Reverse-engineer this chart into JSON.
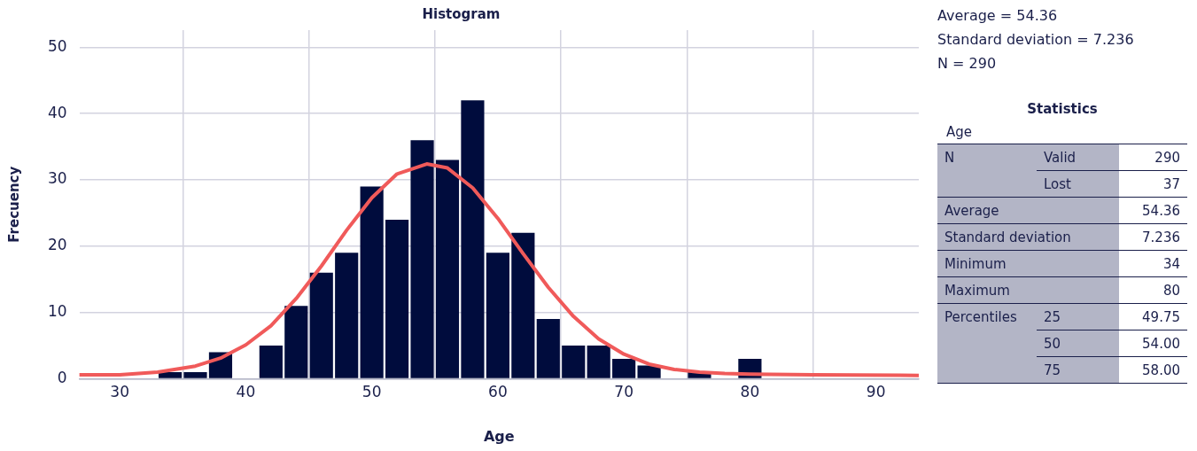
{
  "chart_data": [
    {
      "type": "histogram",
      "title": "Histogram",
      "xlabel": "Age",
      "ylabel": "Frecuency",
      "bins": [
        33,
        35,
        37,
        39,
        41,
        43,
        45,
        47,
        49,
        51,
        53,
        55,
        57,
        59,
        61,
        63,
        65,
        67,
        69,
        71,
        73,
        75,
        77,
        79,
        81
      ],
      "series": [
        {
          "type": "histogram",
          "color": "#000c3d",
          "values": [
            1,
            1,
            4,
            0,
            5,
            11,
            16,
            19,
            29,
            24,
            36,
            33,
            42,
            19,
            22,
            9,
            5,
            5,
            3,
            2,
            0,
            1,
            0,
            3
          ]
        },
        {
          "type": "line",
          "color": "#f05a5a",
          "x": [
            26.8,
            30,
            33,
            36,
            38,
            40,
            42,
            44,
            46,
            48,
            50,
            52,
            54.36,
            56,
            58,
            60,
            62,
            64,
            66,
            68,
            70,
            72,
            74,
            76,
            78,
            80,
            85,
            93.4
          ],
          "values": [
            0.6,
            0.6,
            1.0,
            1.9,
            3.1,
            5.1,
            8.0,
            12.1,
            17.0,
            22.4,
            27.3,
            30.9,
            32.4,
            31.8,
            28.8,
            24.2,
            18.9,
            13.8,
            9.4,
            6.0,
            3.7,
            2.2,
            1.4,
            1.0,
            0.8,
            0.7,
            0.6,
            0.5
          ]
        }
      ],
      "xlim": [
        26.8,
        93.4
      ],
      "ylim": [
        0,
        52.6
      ],
      "xticks": [
        30,
        40,
        50,
        60,
        70,
        80,
        90
      ],
      "yticks": [
        0,
        10,
        20,
        30,
        40,
        50
      ],
      "grid": true,
      "legend": false,
      "marker": "none",
      "line_style": "solid",
      "annotations": [
        "Average = 54.36",
        "Standard deviation = 7.236",
        "N = 290"
      ]
    },
    {
      "type": "other",
      "title": "Statistics",
      "subtitle": "Age",
      "annotations": [
        "N",
        "Valid",
        "290",
        "Lost",
        "37",
        "Average",
        "54.36",
        "Standard deviation",
        "7.236",
        "Minimum",
        "34",
        "Maximum",
        "80",
        "Percentiles",
        "25",
        "49.75",
        "50",
        "54.00",
        "75",
        "58.00"
      ]
    }
  ]
}
